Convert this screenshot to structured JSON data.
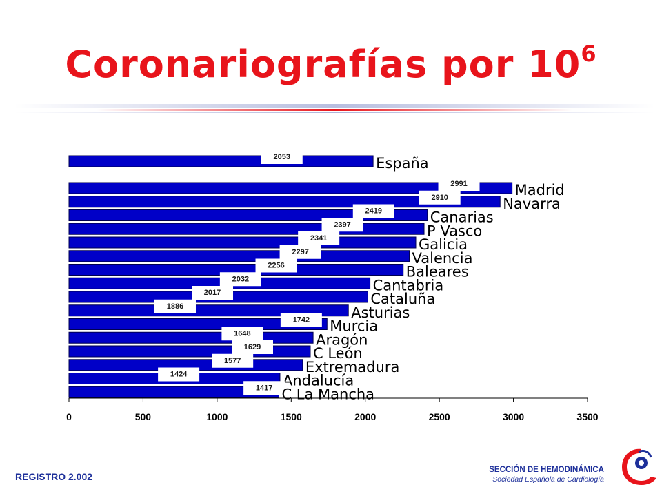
{
  "title": {
    "main": "Coronariografías por 10",
    "sup": "6"
  },
  "footer": {
    "left": "REGISTRO 2.002",
    "section_line1": "SECCIÓN DE HEMODINÁMICA",
    "section_line2": "Sociedad Española de Cardiología"
  },
  "colors": {
    "title": "#e8141b",
    "bar": "#0000c8",
    "bar_outline": "#000050",
    "footer_text": "#1d2f9a"
  },
  "chart_data": {
    "type": "bar",
    "orientation": "horizontal",
    "categories": [
      "España",
      "Madrid",
      "Navarra",
      "Canarias",
      "P Vasco",
      "Galicia",
      "Valencia",
      "Baleares",
      "Cantabria",
      "Cataluña",
      "Asturias",
      "Murcia",
      "Aragón",
      "C León",
      "Extremadura",
      "Andalucía",
      "C La Mancha"
    ],
    "values": [
      2053,
      2991,
      2910,
      2419,
      2397,
      2341,
      2297,
      2256,
      2032,
      2017,
      1886,
      1742,
      1648,
      1629,
      1577,
      1424,
      1417
    ],
    "data_labels": [
      "2053",
      "2991",
      "2910",
      "2419",
      "2397",
      "2341",
      "2297",
      "2256",
      "2032",
      "2017",
      "1886",
      "1742",
      "1648",
      "1629",
      "1577",
      "1424",
      "1417"
    ],
    "xlim": [
      0,
      3500
    ],
    "xticks": [
      "0",
      "500",
      "1000",
      "1500",
      "2000",
      "2500",
      "3000",
      "3500"
    ],
    "grid": false
  }
}
